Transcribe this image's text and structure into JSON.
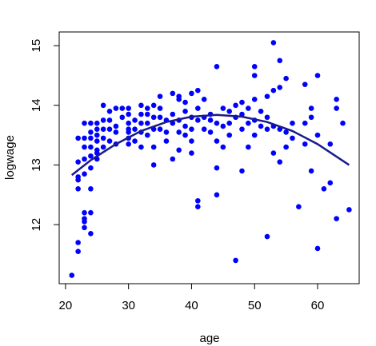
{
  "chart_data": {
    "type": "scatter",
    "x_label": "age",
    "y_label": "logwage",
    "x": [
      21,
      22,
      22,
      22,
      22,
      22,
      22,
      22,
      23,
      23,
      23,
      23,
      23,
      23,
      23,
      23,
      23,
      24,
      24,
      24,
      24,
      24,
      24,
      24,
      24,
      24,
      25,
      25,
      25,
      25,
      25,
      25,
      25,
      26,
      26,
      26,
      26,
      26,
      27,
      27,
      27,
      27,
      28,
      28,
      28,
      28,
      29,
      29,
      30,
      30,
      30,
      30,
      30,
      30,
      30,
      31,
      31,
      31,
      32,
      32,
      32,
      32,
      32,
      33,
      33,
      33,
      33,
      34,
      34,
      34,
      34,
      34,
      35,
      35,
      35,
      35,
      36,
      36,
      36,
      37,
      37,
      37,
      37,
      38,
      38,
      38,
      38,
      38,
      39,
      39,
      39,
      39,
      40,
      40,
      40,
      40,
      40,
      41,
      41,
      41,
      41,
      41,
      42,
      42,
      42,
      43,
      43,
      43,
      44,
      44,
      44,
      44,
      44,
      45,
      45,
      45,
      46,
      46,
      46,
      47,
      47,
      47,
      48,
      48,
      48,
      48,
      49,
      49,
      49,
      50,
      50,
      50,
      50,
      50,
      51,
      51,
      52,
      52,
      52,
      52,
      53,
      53,
      53,
      53,
      54,
      54,
      54,
      54,
      55,
      55,
      55,
      56,
      56,
      57,
      58,
      58,
      58,
      59,
      59,
      59,
      60,
      60,
      60,
      61,
      62,
      62,
      63,
      63,
      63,
      64,
      65
    ],
    "y": [
      11.15,
      11.55,
      11.7,
      12.6,
      12.8,
      12.75,
      13.05,
      13.45,
      11.95,
      12.05,
      12.1,
      12.2,
      12.85,
      13.1,
      13.3,
      13.45,
      13.7,
      11.85,
      12.2,
      12.6,
      12.95,
      13.15,
      13.3,
      13.45,
      13.55,
      13.7,
      13.2,
      13.25,
      13.4,
      13.5,
      13.6,
      13.7,
      13.1,
      13.3,
      13.45,
      13.6,
      13.75,
      14.0,
      13.4,
      13.6,
      13.75,
      13.9,
      13.35,
      13.55,
      13.65,
      13.95,
      13.8,
      13.95,
      13.35,
      13.45,
      13.55,
      13.6,
      13.7,
      13.85,
      13.95,
      13.4,
      13.6,
      13.75,
      13.3,
      13.55,
      13.7,
      13.85,
      14.0,
      13.5,
      13.7,
      13.85,
      13.95,
      13.0,
      13.3,
      13.6,
      13.8,
      14.0,
      13.6,
      13.8,
      13.95,
      14.15,
      13.4,
      13.55,
      13.75,
      13.1,
      13.7,
      13.85,
      14.2,
      13.25,
      13.55,
      13.75,
      14.1,
      14.15,
      13.5,
      13.65,
      13.9,
      14.05,
      13.2,
      13.4,
      13.6,
      13.8,
      14.2,
      12.3,
      12.4,
      13.75,
      13.95,
      14.25,
      13.6,
      13.8,
      14.1,
      13.55,
      13.75,
      13.85,
      12.5,
      12.95,
      13.4,
      13.7,
      14.65,
      13.3,
      13.65,
      13.95,
      13.5,
      13.7,
      13.9,
      11.4,
      13.8,
      14.0,
      12.9,
      13.6,
      13.85,
      14.05,
      13.3,
      13.7,
      13.95,
      13.5,
      13.75,
      14.1,
      14.5,
      14.65,
      13.65,
      13.9,
      11.8,
      13.6,
      13.8,
      14.15,
      13.2,
      13.65,
      14.25,
      15.05,
      13.05,
      13.6,
      14.3,
      14.75,
      13.3,
      13.55,
      14.45,
      13.45,
      13.7,
      12.3,
      13.35,
      13.7,
      14.35,
      12.9,
      13.8,
      13.95,
      11.6,
      13.5,
      14.5,
      12.6,
      12.7,
      13.35,
      12.1,
      13.95,
      14.1,
      13.7,
      12.25
    ],
    "color": "#0000ff",
    "fit": {
      "x": [
        21,
        24,
        28,
        32,
        36,
        40,
        44,
        48,
        52,
        56,
        60,
        65
      ],
      "values": [
        12.83,
        13.08,
        13.35,
        13.57,
        13.72,
        13.81,
        13.84,
        13.81,
        13.72,
        13.57,
        13.35,
        13.0
      ],
      "color": "#1a1a8c"
    },
    "xlim": [
      19.0,
      66.6
    ],
    "ylim": [
      11.01,
      15.23
    ],
    "xticks": [
      20,
      30,
      40,
      50,
      60
    ],
    "yticks": [
      12,
      13,
      14,
      15
    ]
  }
}
